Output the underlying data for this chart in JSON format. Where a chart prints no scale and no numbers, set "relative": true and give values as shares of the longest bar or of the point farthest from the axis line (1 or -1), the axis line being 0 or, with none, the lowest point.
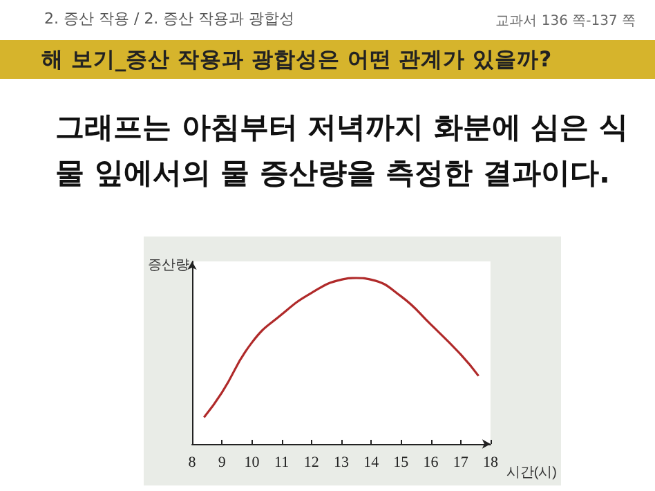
{
  "chart_data": {
    "type": "line",
    "title": "해 보기_증산 작용과 광합성은 어떤 관계가 있을까?",
    "subtitle": "그래프는 아침부터 저녁까지 화분에 심은 식물 잎에서의 물 증산량을 측정한 결과이다.",
    "annotations": [
      "2. 증산 작용 / 2. 증산 작용과 광합성",
      "교과서 136 쪽-137 쪽"
    ],
    "xlabel": "시간(시)",
    "ylabel": "증산량",
    "relative": true,
    "xlim": [
      8,
      18
    ],
    "xticks": [
      8,
      9,
      10,
      11,
      12,
      13,
      14,
      15,
      16,
      17,
      18
    ],
    "x": [
      8.4,
      9,
      10,
      11,
      12,
      13,
      13.5,
      14,
      15,
      16,
      17,
      17.6
    ],
    "series": [
      {
        "color": "#b02a2a",
        "values": [
          0.16,
          0.31,
          0.61,
          0.78,
          0.91,
          0.99,
          1,
          0.99,
          0.89,
          0.72,
          0.54,
          0.41
        ]
      }
    ],
    "grid": false,
    "marker": "none",
    "line_style": "solid"
  }
}
